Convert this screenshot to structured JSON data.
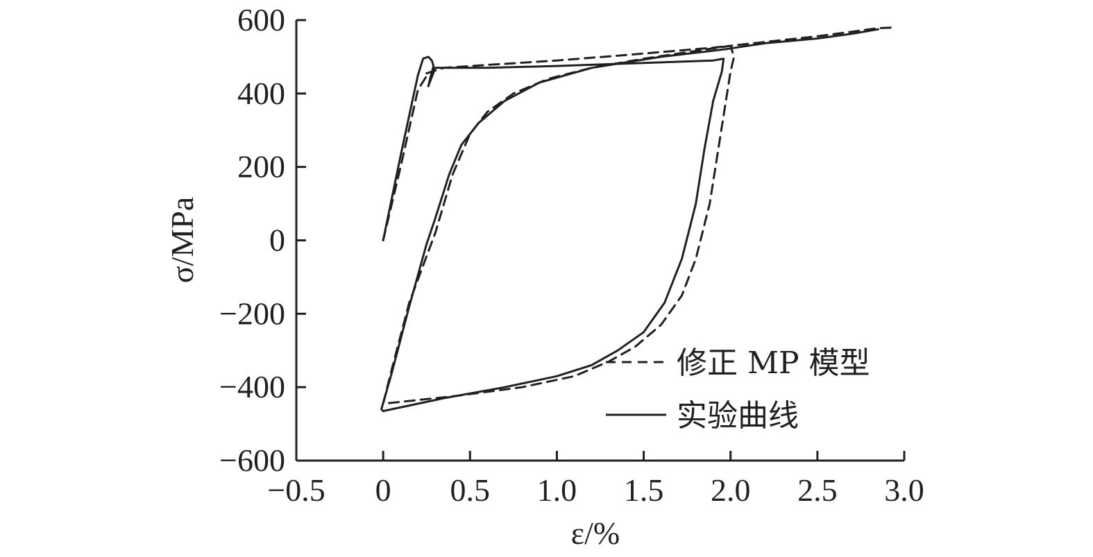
{
  "chart_data": {
    "type": "line",
    "xlabel": "ε/%",
    "ylabel": "σ/MPa",
    "xlim": [
      -0.5,
      3.0
    ],
    "ylim": [
      -600,
      600
    ],
    "xticks": [
      {
        "value": -0.5,
        "label": "−0.5"
      },
      {
        "value": 0,
        "label": "0"
      },
      {
        "value": 0.5,
        "label": "0.5"
      },
      {
        "value": 1.0,
        "label": "1.0"
      },
      {
        "value": 1.5,
        "label": "1.5"
      },
      {
        "value": 2.0,
        "label": "2.0"
      },
      {
        "value": 2.5,
        "label": "2.5"
      },
      {
        "value": 3.0,
        "label": "3.0"
      }
    ],
    "yticks": [
      {
        "value": 600,
        "label": "600"
      },
      {
        "value": 400,
        "label": "400"
      },
      {
        "value": 200,
        "label": "200"
      },
      {
        "value": 0,
        "label": "0"
      },
      {
        "value": -200,
        "label": "−200"
      },
      {
        "value": -400,
        "label": "−400"
      },
      {
        "value": -600,
        "label": "−600"
      }
    ],
    "grid": false,
    "legend_position": "bottom-right",
    "series": [
      {
        "name": "修正 MP 模型",
        "style": "dashed",
        "color": "#231f20",
        "points": [
          [
            0.0,
            0
          ],
          [
            0.1,
            200
          ],
          [
            0.2,
            410
          ],
          [
            0.26,
            455
          ],
          [
            0.25,
            455
          ],
          [
            0.35,
            470
          ],
          [
            0.6,
            478
          ],
          [
            1.0,
            490
          ],
          [
            1.4,
            505
          ],
          [
            1.9,
            525
          ],
          [
            2.0,
            530
          ],
          [
            2.02,
            500
          ],
          [
            2.0,
            460
          ],
          [
            1.98,
            400
          ],
          [
            1.93,
            250
          ],
          [
            1.88,
            100
          ],
          [
            1.8,
            -50
          ],
          [
            1.72,
            -150
          ],
          [
            1.6,
            -230
          ],
          [
            1.45,
            -290
          ],
          [
            1.3,
            -330
          ],
          [
            1.1,
            -370
          ],
          [
            0.8,
            -400
          ],
          [
            0.4,
            -425
          ],
          [
            0.0,
            -445
          ],
          [
            0.0,
            -445
          ],
          [
            0.05,
            -350
          ],
          [
            0.15,
            -170
          ],
          [
            0.3,
            20
          ],
          [
            0.4,
            180
          ],
          [
            0.5,
            290
          ],
          [
            0.6,
            350
          ],
          [
            0.75,
            400
          ],
          [
            0.95,
            440
          ],
          [
            1.2,
            470
          ],
          [
            1.5,
            495
          ],
          [
            2.0,
            530
          ],
          [
            2.5,
            556
          ],
          [
            2.85,
            578
          ],
          [
            2.95,
            580
          ]
        ]
      },
      {
        "name": "实验曲线",
        "style": "solid",
        "color": "#231f20",
        "points": [
          [
            0.0,
            0
          ],
          [
            0.1,
            230
          ],
          [
            0.2,
            450
          ],
          [
            0.23,
            495
          ],
          [
            0.26,
            500
          ],
          [
            0.28,
            490
          ],
          [
            0.29,
            475
          ],
          [
            0.27,
            440
          ],
          [
            0.26,
            420
          ],
          [
            0.3,
            470
          ],
          [
            0.6,
            470
          ],
          [
            1.0,
            475
          ],
          [
            1.3,
            480
          ],
          [
            1.6,
            485
          ],
          [
            1.9,
            490
          ],
          [
            1.96,
            495
          ],
          [
            1.95,
            460
          ],
          [
            1.9,
            380
          ],
          [
            1.85,
            250
          ],
          [
            1.8,
            100
          ],
          [
            1.72,
            -50
          ],
          [
            1.62,
            -170
          ],
          [
            1.5,
            -250
          ],
          [
            1.35,
            -300
          ],
          [
            1.2,
            -340
          ],
          [
            1.0,
            -370
          ],
          [
            0.7,
            -400
          ],
          [
            0.35,
            -430
          ],
          [
            0.0,
            -465
          ],
          [
            -0.01,
            -460
          ],
          [
            0.05,
            -360
          ],
          [
            0.15,
            -180
          ],
          [
            0.25,
            -10
          ],
          [
            0.3,
            60
          ],
          [
            0.38,
            180
          ],
          [
            0.45,
            260
          ],
          [
            0.55,
            320
          ],
          [
            0.7,
            380
          ],
          [
            0.9,
            430
          ],
          [
            1.2,
            470
          ],
          [
            1.6,
            500
          ],
          [
            1.96,
            520
          ],
          [
            2.2,
            537
          ],
          [
            2.5,
            550
          ],
          [
            2.7,
            563
          ],
          [
            2.85,
            575
          ]
        ]
      }
    ]
  }
}
